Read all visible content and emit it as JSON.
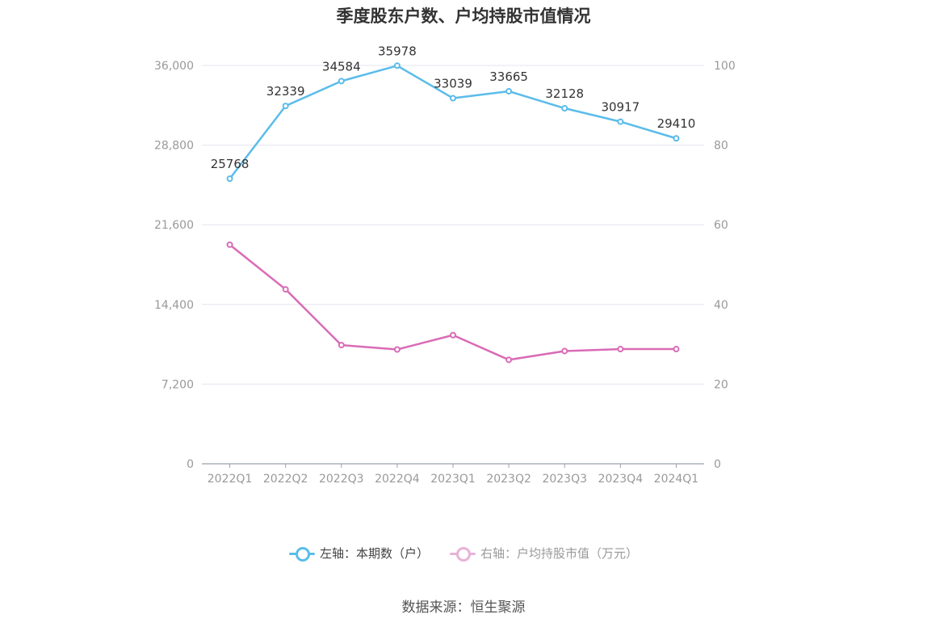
{
  "chart_data": {
    "type": "line",
    "title": "季度股东户数、户均持股市值情况",
    "categories": [
      "2022Q1",
      "2022Q2",
      "2022Q3",
      "2022Q4",
      "2023Q1",
      "2023Q2",
      "2023Q3",
      "2023Q4",
      "2024Q1"
    ],
    "series": [
      {
        "name": "左轴：本期数（户）",
        "axis": "left",
        "color": "#5bbcea",
        "values": [
          25768,
          32339,
          34584,
          35978,
          33039,
          33665,
          32128,
          30917,
          29410
        ],
        "labels": [
          "25768",
          "32339",
          "34584",
          "35978",
          "33039",
          "33665",
          "32128",
          "30917",
          "29410"
        ]
      },
      {
        "name": "右轴：户均持股市值（万元）",
        "axis": "right",
        "color": "#d96bb6",
        "values": [
          55.0,
          43.8,
          29.8,
          28.7,
          32.3,
          26.1,
          28.3,
          28.8,
          28.8
        ]
      }
    ],
    "y_left": {
      "min": 0,
      "max": 36000,
      "ticks": [
        0,
        7200,
        14400,
        21600,
        28800,
        36000
      ],
      "tick_labels": [
        "0",
        "7,200",
        "14,400",
        "21,600",
        "28,800",
        "36,000"
      ]
    },
    "y_right": {
      "min": 0,
      "max": 100,
      "ticks": [
        0,
        20,
        40,
        60,
        80,
        100
      ],
      "tick_labels": [
        "0",
        "20",
        "40",
        "60",
        "80",
        "100"
      ]
    },
    "grid": true,
    "legend_position": "bottom"
  },
  "source": "数据来源：恒生聚源"
}
